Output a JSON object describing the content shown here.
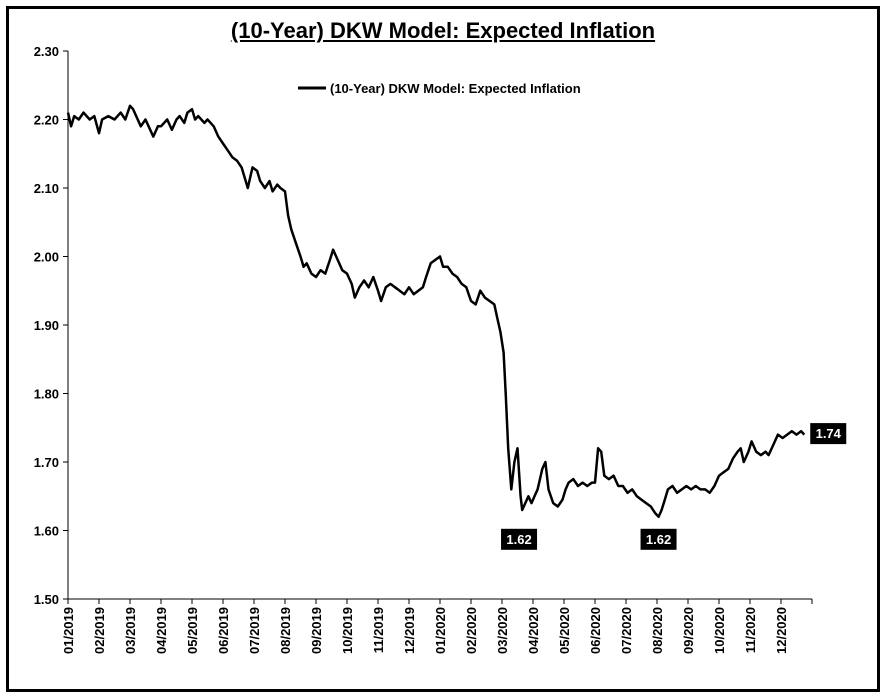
{
  "chart_data": {
    "type": "line",
    "title": "(10-Year) DKW Model: Expected Inflation",
    "legend": "(10-Year) DKW Model: Expected Inflation",
    "legend_placement": "top-center",
    "ylim": [
      1.5,
      2.3
    ],
    "yticks": [
      "2.30",
      "2.20",
      "2.10",
      "2.00",
      "1.90",
      "1.80",
      "1.70",
      "1.60",
      "1.50"
    ],
    "ytick_values": [
      2.3,
      2.2,
      2.1,
      2.0,
      1.9,
      1.8,
      1.7,
      1.6,
      1.5
    ],
    "xticks": [
      "01/2019",
      "02/2019",
      "03/2019",
      "04/2019",
      "05/2019",
      "06/2019",
      "07/2019",
      "08/2019",
      "09/2019",
      "10/2019",
      "11/2019",
      "12/2019",
      "01/2020",
      "02/2020",
      "03/2020",
      "04/2020",
      "05/2020",
      "06/2020",
      "07/2020",
      "08/2020",
      "09/2020",
      "10/2020",
      "11/2020",
      "12/2020"
    ],
    "grid": false,
    "series": [
      {
        "name": "(10-Year) DKW Model: Expected Inflation",
        "color": "#000000",
        "points": [
          [
            0.0,
            2.21
          ],
          [
            0.1,
            2.19
          ],
          [
            0.2,
            2.205
          ],
          [
            0.35,
            2.2
          ],
          [
            0.5,
            2.21
          ],
          [
            0.7,
            2.2
          ],
          [
            0.85,
            2.205
          ],
          [
            1.0,
            2.18
          ],
          [
            1.1,
            2.2
          ],
          [
            1.3,
            2.205
          ],
          [
            1.5,
            2.2
          ],
          [
            1.7,
            2.21
          ],
          [
            1.85,
            2.2
          ],
          [
            2.0,
            2.22
          ],
          [
            2.1,
            2.215
          ],
          [
            2.2,
            2.205
          ],
          [
            2.35,
            2.19
          ],
          [
            2.5,
            2.2
          ],
          [
            2.6,
            2.19
          ],
          [
            2.75,
            2.175
          ],
          [
            2.9,
            2.19
          ],
          [
            3.0,
            2.19
          ],
          [
            3.2,
            2.2
          ],
          [
            3.35,
            2.185
          ],
          [
            3.5,
            2.2
          ],
          [
            3.6,
            2.205
          ],
          [
            3.75,
            2.195
          ],
          [
            3.85,
            2.21
          ],
          [
            4.0,
            2.215
          ],
          [
            4.1,
            2.2
          ],
          [
            4.2,
            2.205
          ],
          [
            4.4,
            2.195
          ],
          [
            4.5,
            2.2
          ],
          [
            4.7,
            2.19
          ],
          [
            4.85,
            2.175
          ],
          [
            5.0,
            2.165
          ],
          [
            5.15,
            2.155
          ],
          [
            5.3,
            2.145
          ],
          [
            5.45,
            2.14
          ],
          [
            5.6,
            2.13
          ],
          [
            5.7,
            2.115
          ],
          [
            5.8,
            2.1
          ],
          [
            5.95,
            2.13
          ],
          [
            6.1,
            2.125
          ],
          [
            6.2,
            2.11
          ],
          [
            6.35,
            2.1
          ],
          [
            6.5,
            2.11
          ],
          [
            6.6,
            2.095
          ],
          [
            6.75,
            2.105
          ],
          [
            6.85,
            2.1
          ],
          [
            7.0,
            2.095
          ],
          [
            7.1,
            2.06
          ],
          [
            7.2,
            2.04
          ],
          [
            7.35,
            2.02
          ],
          [
            7.5,
            2.0
          ],
          [
            7.6,
            1.985
          ],
          [
            7.7,
            1.99
          ],
          [
            7.85,
            1.975
          ],
          [
            8.0,
            1.97
          ],
          [
            8.15,
            1.98
          ],
          [
            8.3,
            1.975
          ],
          [
            8.45,
            1.995
          ],
          [
            8.55,
            2.01
          ],
          [
            8.7,
            1.995
          ],
          [
            8.85,
            1.98
          ],
          [
            9.0,
            1.975
          ],
          [
            9.15,
            1.96
          ],
          [
            9.25,
            1.94
          ],
          [
            9.4,
            1.955
          ],
          [
            9.55,
            1.965
          ],
          [
            9.7,
            1.955
          ],
          [
            9.85,
            1.97
          ],
          [
            10.0,
            1.95
          ],
          [
            10.1,
            1.935
          ],
          [
            10.25,
            1.955
          ],
          [
            10.4,
            1.96
          ],
          [
            10.55,
            1.955
          ],
          [
            10.7,
            1.95
          ],
          [
            10.85,
            1.945
          ],
          [
            11.0,
            1.955
          ],
          [
            11.15,
            1.945
          ],
          [
            11.3,
            1.95
          ],
          [
            11.45,
            1.955
          ],
          [
            11.55,
            1.97
          ],
          [
            11.7,
            1.99
          ],
          [
            11.85,
            1.995
          ],
          [
            12.0,
            2.0
          ],
          [
            12.1,
            1.985
          ],
          [
            12.25,
            1.985
          ],
          [
            12.4,
            1.975
          ],
          [
            12.55,
            1.97
          ],
          [
            12.7,
            1.96
          ],
          [
            12.85,
            1.955
          ],
          [
            13.0,
            1.935
          ],
          [
            13.15,
            1.93
          ],
          [
            13.3,
            1.95
          ],
          [
            13.45,
            1.94
          ],
          [
            13.6,
            1.935
          ],
          [
            13.75,
            1.93
          ],
          [
            13.85,
            1.91
          ],
          [
            13.95,
            1.89
          ],
          [
            14.05,
            1.86
          ],
          [
            14.12,
            1.8
          ],
          [
            14.2,
            1.72
          ],
          [
            14.3,
            1.66
          ],
          [
            14.4,
            1.7
          ],
          [
            14.5,
            1.72
          ],
          [
            14.6,
            1.65
          ],
          [
            14.65,
            1.63
          ],
          [
            14.75,
            1.64
          ],
          [
            14.85,
            1.65
          ],
          [
            14.95,
            1.64
          ],
          [
            15.05,
            1.65
          ],
          [
            15.15,
            1.66
          ],
          [
            15.3,
            1.69
          ],
          [
            15.4,
            1.7
          ],
          [
            15.5,
            1.66
          ],
          [
            15.65,
            1.64
          ],
          [
            15.8,
            1.635
          ],
          [
            15.95,
            1.645
          ],
          [
            16.05,
            1.66
          ],
          [
            16.15,
            1.67
          ],
          [
            16.3,
            1.675
          ],
          [
            16.45,
            1.665
          ],
          [
            16.6,
            1.67
          ],
          [
            16.75,
            1.665
          ],
          [
            16.9,
            1.67
          ],
          [
            17.0,
            1.67
          ],
          [
            17.1,
            1.72
          ],
          [
            17.2,
            1.715
          ],
          [
            17.3,
            1.68
          ],
          [
            17.45,
            1.675
          ],
          [
            17.6,
            1.68
          ],
          [
            17.75,
            1.665
          ],
          [
            17.9,
            1.665
          ],
          [
            18.05,
            1.655
          ],
          [
            18.2,
            1.66
          ],
          [
            18.35,
            1.65
          ],
          [
            18.5,
            1.645
          ],
          [
            18.65,
            1.64
          ],
          [
            18.8,
            1.635
          ],
          [
            18.95,
            1.625
          ],
          [
            19.05,
            1.62
          ],
          [
            19.15,
            1.63
          ],
          [
            19.25,
            1.645
          ],
          [
            19.35,
            1.66
          ],
          [
            19.5,
            1.665
          ],
          [
            19.65,
            1.655
          ],
          [
            19.8,
            1.66
          ],
          [
            19.95,
            1.665
          ],
          [
            20.1,
            1.66
          ],
          [
            20.25,
            1.665
          ],
          [
            20.4,
            1.66
          ],
          [
            20.55,
            1.66
          ],
          [
            20.7,
            1.655
          ],
          [
            20.85,
            1.665
          ],
          [
            21.0,
            1.68
          ],
          [
            21.15,
            1.685
          ],
          [
            21.3,
            1.69
          ],
          [
            21.45,
            1.705
          ],
          [
            21.6,
            1.715
          ],
          [
            21.7,
            1.72
          ],
          [
            21.8,
            1.7
          ],
          [
            21.95,
            1.715
          ],
          [
            22.05,
            1.73
          ],
          [
            22.2,
            1.715
          ],
          [
            22.35,
            1.71
          ],
          [
            22.5,
            1.715
          ],
          [
            22.6,
            1.71
          ],
          [
            22.75,
            1.725
          ],
          [
            22.9,
            1.74
          ],
          [
            23.05,
            1.735
          ],
          [
            23.2,
            1.74
          ],
          [
            23.35,
            1.745
          ],
          [
            23.5,
            1.74
          ],
          [
            23.65,
            1.745
          ],
          [
            23.75,
            1.74
          ]
        ]
      }
    ],
    "annotations": [
      {
        "text": "1.74",
        "x": 23.75,
        "y": 1.74,
        "placement": "right"
      },
      {
        "text": "1.62",
        "x": 14.55,
        "y": 1.62,
        "placement": "below"
      },
      {
        "text": "1.62",
        "x": 19.05,
        "y": 1.62,
        "placement": "below"
      }
    ]
  }
}
